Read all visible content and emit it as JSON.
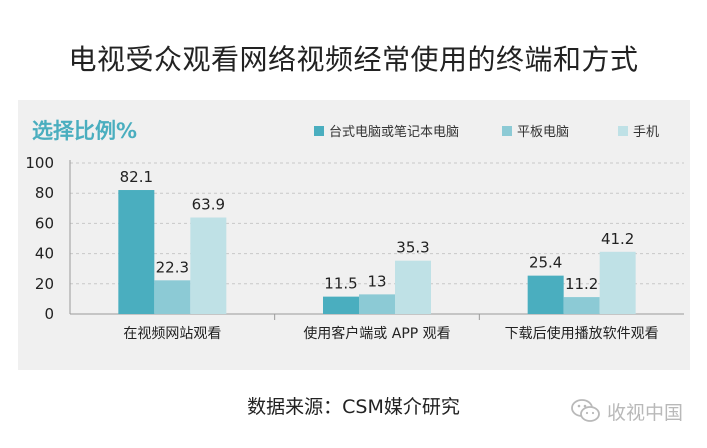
{
  "page_title": "电视受众观看网络视频经常使用的终端和方式",
  "source": "数据来源：CSM媒介研究",
  "watermark": "收视中国",
  "colors": {
    "panel_bg": "#f0f0f0",
    "accent_heading": "#4aaebf",
    "series": [
      "#4aaebf",
      "#8ccad5",
      "#bfe1e6"
    ]
  },
  "chart_data": {
    "type": "bar",
    "title": "选择比例%",
    "categories": [
      "在视频网站观看",
      "使用客户端或 APP 观看",
      "下载后使用播放软件观看"
    ],
    "series": [
      {
        "name": "台式电脑或笔记本电脑",
        "values": [
          82.1,
          11.5,
          25.4
        ]
      },
      {
        "name": "平板电脑",
        "values": [
          22.3,
          13,
          11.2
        ]
      },
      {
        "name": "手机",
        "values": [
          63.9,
          35.3,
          41.2
        ]
      }
    ],
    "ylim": [
      0,
      100
    ],
    "yticks": [
      0,
      20,
      40,
      60,
      80,
      100
    ],
    "xlabel": "",
    "ylabel": "",
    "grid": true,
    "legend_position": "top-right",
    "data_labels": true
  }
}
